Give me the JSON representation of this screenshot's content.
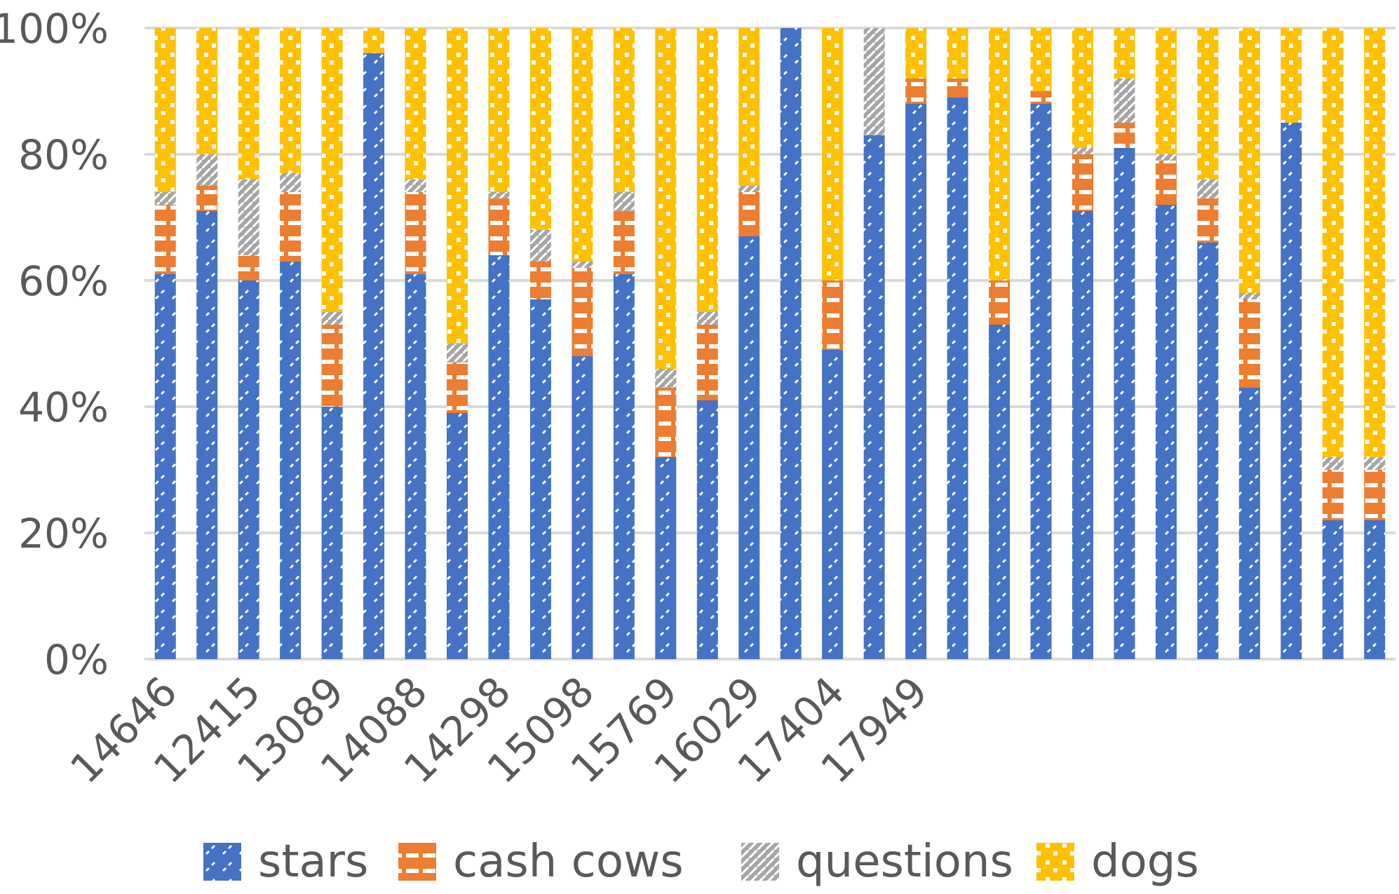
{
  "chart_data": {
    "type": "bar",
    "stacked": true,
    "percent": true,
    "ylim": [
      0,
      100
    ],
    "yticks": [
      "0%",
      "20%",
      "40%",
      "60%",
      "80%",
      "100%"
    ],
    "categories": [
      "14646",
      "",
      "12415",
      "",
      "13089",
      "",
      "14088",
      "",
      "14298",
      "",
      "15098",
      "",
      "15769",
      "",
      "16029",
      "",
      "17404",
      "",
      "17949",
      "",
      "",
      "",
      "",
      "",
      "",
      "",
      "",
      "",
      "",
      ""
    ],
    "xtick_labels": [
      "14646",
      "12415",
      "13089",
      "14088",
      "14298",
      "15098",
      "15769",
      "16029",
      "17404",
      "17949"
    ],
    "series": [
      {
        "name": "stars",
        "color": "#4472C4",
        "values": [
          61,
          71,
          60,
          63,
          40,
          96,
          61,
          39,
          64,
          57,
          48,
          61,
          32,
          41,
          67,
          100,
          49,
          83,
          88,
          89,
          53,
          88,
          71,
          81,
          72,
          66,
          43,
          85,
          22,
          22
        ]
      },
      {
        "name": "cash cows",
        "color": "#ED7D31",
        "values": [
          11,
          4,
          4,
          11,
          13,
          0,
          13,
          8,
          9,
          6,
          14,
          10,
          11,
          12,
          7,
          0,
          11,
          0,
          4,
          3,
          7,
          2,
          9,
          4,
          7,
          7,
          14,
          0,
          8,
          8
        ]
      },
      {
        "name": "questions",
        "color": "#A5A5A5",
        "values": [
          2,
          5,
          12,
          3,
          2,
          0,
          2,
          3,
          1,
          5,
          1,
          3,
          3,
          2,
          1,
          0,
          0,
          17,
          0,
          0,
          0,
          0,
          1,
          7,
          1,
          3,
          1,
          0,
          2,
          2
        ]
      },
      {
        "name": "dogs",
        "color": "#FFC000",
        "values": [
          26,
          20,
          24,
          23,
          45,
          4,
          24,
          50,
          26,
          32,
          37,
          26,
          54,
          45,
          25,
          0,
          40,
          0,
          8,
          8,
          40,
          10,
          19,
          8,
          20,
          24,
          42,
          15,
          68,
          68
        ]
      }
    ],
    "legend_position": "bottom",
    "grid": true
  }
}
